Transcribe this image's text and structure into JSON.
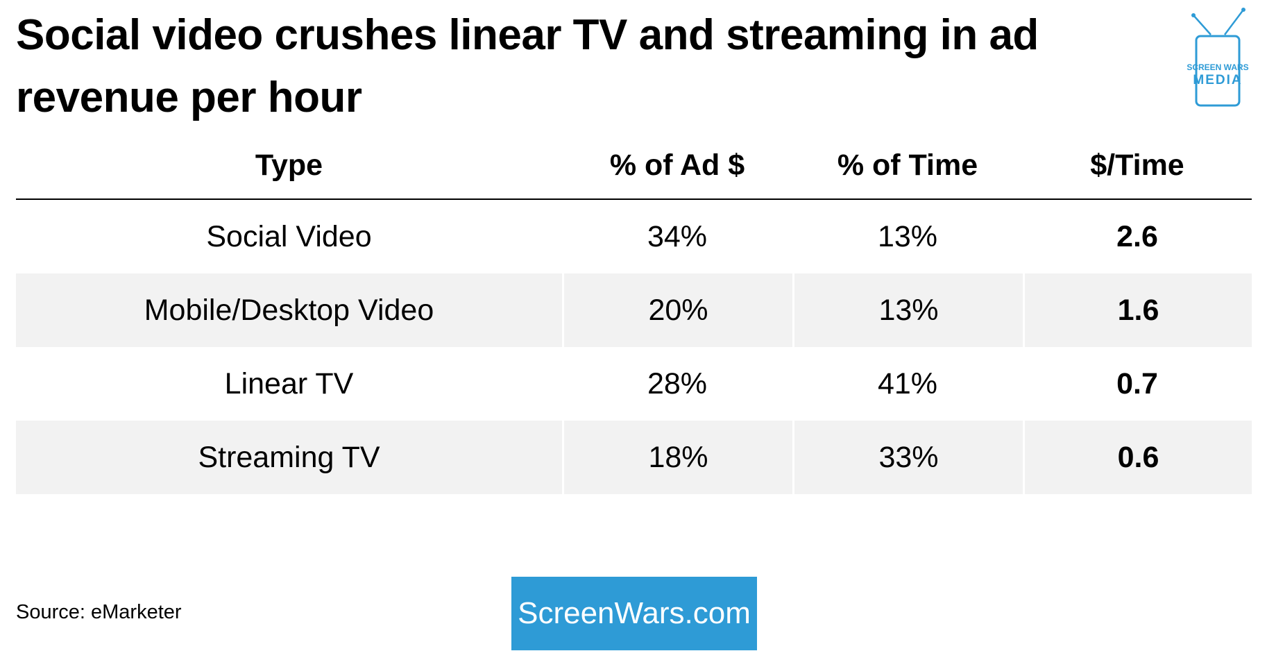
{
  "header": {
    "title": "Social video crushes linear TV and streaming in ad revenue per hour"
  },
  "logo": {
    "line1": "SCREEN WARS",
    "line2": "MEDIA"
  },
  "table": {
    "columns": [
      "Type",
      "% of Ad $",
      "% of Time",
      "$/Time"
    ],
    "rows": [
      [
        "Social Video",
        "34%",
        "13%",
        "2.6"
      ],
      [
        "Mobile/Desktop Video",
        "20%",
        "13%",
        "1.6"
      ],
      [
        "Linear TV",
        "28%",
        "41%",
        "0.7"
      ],
      [
        "Streaming TV",
        "18%",
        "33%",
        "0.6"
      ]
    ]
  },
  "source": "Source: eMarketer",
  "link": "ScreenWars.com"
}
